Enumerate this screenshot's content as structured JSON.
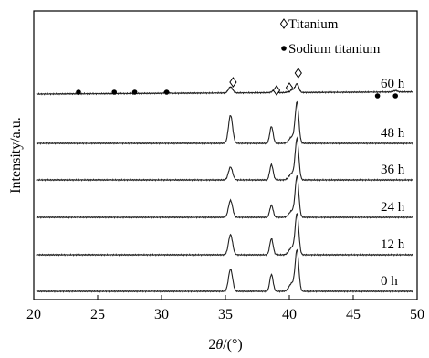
{
  "chart_data": {
    "type": "line",
    "xlabel": "2θ/(°)",
    "ylabel": "Intensity/a.u.",
    "xlim": [
      20,
      50
    ],
    "x_ticks": [
      20,
      25,
      30,
      35,
      40,
      45,
      50
    ],
    "grid": false,
    "legend": {
      "position": "top-right",
      "entries": [
        {
          "marker": "diamond",
          "label": "Titanium"
        },
        {
          "marker": "dot",
          "label": "Sodium titanium"
        }
      ]
    },
    "series": [
      {
        "name": "0 h",
        "peaks": [
          {
            "x": 35.4,
            "h": 0.55
          },
          {
            "x": 38.6,
            "h": 0.42
          },
          {
            "x": 40.2,
            "h": 0.2
          },
          {
            "x": 40.6,
            "h": 1.0
          }
        ]
      },
      {
        "name": "12 h",
        "peaks": [
          {
            "x": 35.4,
            "h": 0.5
          },
          {
            "x": 38.6,
            "h": 0.4
          },
          {
            "x": 40.2,
            "h": 0.18
          },
          {
            "x": 40.6,
            "h": 1.0
          }
        ]
      },
      {
        "name": "24 h",
        "peaks": [
          {
            "x": 35.4,
            "h": 0.42
          },
          {
            "x": 38.6,
            "h": 0.3
          },
          {
            "x": 40.2,
            "h": 0.16
          },
          {
            "x": 40.6,
            "h": 1.0
          }
        ]
      },
      {
        "name": "36 h",
        "peaks": [
          {
            "x": 35.4,
            "h": 0.32
          },
          {
            "x": 38.6,
            "h": 0.38
          },
          {
            "x": 40.2,
            "h": 0.16
          },
          {
            "x": 40.6,
            "h": 1.0
          }
        ]
      },
      {
        "name": "48 h",
        "peaks": [
          {
            "x": 35.4,
            "h": 0.7
          },
          {
            "x": 38.6,
            "h": 0.42
          },
          {
            "x": 40.2,
            "h": 0.16
          },
          {
            "x": 40.6,
            "h": 1.0
          }
        ]
      },
      {
        "name": "60 h",
        "peaks": [
          {
            "x": 30.4,
            "h": 0.05
          },
          {
            "x": 35.4,
            "h": 0.22
          },
          {
            "x": 38.8,
            "h": 0.08
          },
          {
            "x": 40.2,
            "h": 0.1
          },
          {
            "x": 40.6,
            "h": 0.3
          },
          {
            "x": 48.3,
            "h": 0.05
          }
        ]
      }
    ],
    "annotations": {
      "titanium_peaks_x": [
        35.6,
        39.0,
        40.0,
        40.7
      ],
      "sodium_titanium_peaks_x": [
        23.5,
        26.3,
        27.9,
        30.4,
        46.9,
        48.3
      ]
    }
  }
}
